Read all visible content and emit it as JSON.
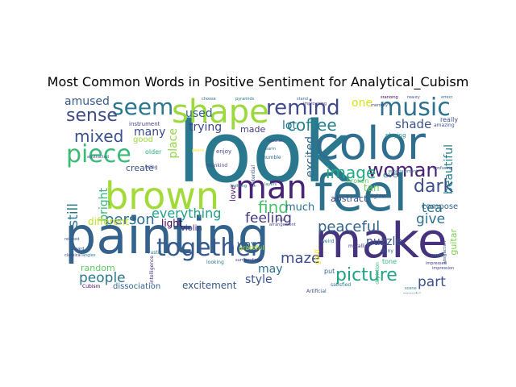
{
  "chart_data": {
    "type": "wordcloud",
    "title": "Most Common Words in Positive Sentiment for Analytical_Cubism",
    "colormap": "viridis",
    "words": [
      {
        "text": "look",
        "weight": 100,
        "color": "#2a788e",
        "orientation": "horizontal"
      },
      {
        "text": "painting",
        "weight": 78,
        "color": "#33638d",
        "orientation": "horizontal"
      },
      {
        "text": "make",
        "weight": 70,
        "color": "#46337e",
        "orientation": "horizontal"
      },
      {
        "text": "color",
        "weight": 66,
        "color": "#2e6e8e",
        "orientation": "horizontal"
      },
      {
        "text": "feel",
        "weight": 64,
        "color": "#2d708e",
        "orientation": "horizontal"
      },
      {
        "text": "brown",
        "weight": 50,
        "color": "#a2da37",
        "orientation": "horizontal"
      },
      {
        "text": "shape",
        "weight": 46,
        "color": "#9bd93c",
        "orientation": "horizontal"
      },
      {
        "text": "man",
        "weight": 40,
        "color": "#482374",
        "orientation": "horizontal"
      },
      {
        "text": "together",
        "weight": 34,
        "color": "#375a8c",
        "orientation": "horizontal"
      },
      {
        "text": "music",
        "weight": 32,
        "color": "#2c728e",
        "orientation": "horizontal"
      },
      {
        "text": "piece",
        "weight": 30,
        "color": "#3aba76",
        "orientation": "horizontal"
      },
      {
        "text": "seem",
        "weight": 30,
        "color": "#2a788e",
        "orientation": "horizontal"
      },
      {
        "text": "remind",
        "weight": 28,
        "color": "#3f4889",
        "orientation": "horizontal"
      },
      {
        "text": "woman",
        "weight": 24,
        "color": "#482173",
        "orientation": "horizontal"
      },
      {
        "text": "picture",
        "weight": 22,
        "color": "#20a386",
        "orientation": "horizontal"
      },
      {
        "text": "sense",
        "weight": 22,
        "color": "#3e4c8a",
        "orientation": "horizontal"
      },
      {
        "text": "coffee",
        "weight": 20,
        "color": "#26828e",
        "orientation": "horizontal"
      },
      {
        "text": "dark",
        "weight": 20,
        "color": "#3d4e8a",
        "orientation": "horizontal"
      },
      {
        "text": "mixed",
        "weight": 18,
        "color": "#3b518b",
        "orientation": "horizontal"
      },
      {
        "text": "image",
        "weight": 18,
        "color": "#22a884",
        "orientation": "horizontal"
      },
      {
        "text": "find",
        "weight": 18,
        "color": "#4ac16d",
        "orientation": "horizontal"
      },
      {
        "text": "person",
        "weight": 18,
        "color": "#2d708e",
        "orientation": "horizontal"
      },
      {
        "text": "peaceful",
        "weight": 18,
        "color": "#33638d",
        "orientation": "horizontal"
      },
      {
        "text": "feeling",
        "weight": 16,
        "color": "#443983",
        "orientation": "horizontal"
      },
      {
        "text": "maze",
        "weight": 16,
        "color": "#3d4e8a",
        "orientation": "horizontal"
      },
      {
        "text": "people",
        "weight": 16,
        "color": "#2a788e",
        "orientation": "horizontal"
      },
      {
        "text": "part",
        "weight": 16,
        "color": "#3b528b",
        "orientation": "horizontal"
      },
      {
        "text": "still",
        "weight": 16,
        "color": "#2a788e",
        "orientation": "vertical"
      },
      {
        "text": "everything",
        "weight": 15,
        "color": "#1fa088",
        "orientation": "horizontal"
      },
      {
        "text": "give",
        "weight": 15,
        "color": "#2c728e",
        "orientation": "horizontal"
      },
      {
        "text": "tea",
        "weight": 15,
        "color": "#2a788e",
        "orientation": "horizontal"
      },
      {
        "text": "amused",
        "weight": 14,
        "color": "#375a8c",
        "orientation": "horizontal"
      },
      {
        "text": "shade",
        "weight": 14,
        "color": "#3a548c",
        "orientation": "horizontal"
      },
      {
        "text": "lot",
        "weight": 14,
        "color": "#2a788e",
        "orientation": "horizontal"
      },
      {
        "text": "puzzle",
        "weight": 13,
        "color": "#39568c",
        "orientation": "horizontal"
      },
      {
        "text": "style",
        "weight": 13,
        "color": "#3b528b",
        "orientation": "horizontal"
      },
      {
        "text": "much",
        "weight": 13,
        "color": "#2c728e",
        "orientation": "horizontal"
      },
      {
        "text": "may",
        "weight": 13,
        "color": "#2c728e",
        "orientation": "horizontal"
      },
      {
        "text": "used",
        "weight": 13,
        "color": "#33638d",
        "orientation": "horizontal"
      },
      {
        "text": "trying",
        "weight": 12,
        "color": "#3f4788",
        "orientation": "horizontal"
      },
      {
        "text": "bright",
        "weight": 12,
        "color": "#35b779",
        "orientation": "vertical"
      },
      {
        "text": "place",
        "weight": 12,
        "color": "#90d743",
        "orientation": "vertical"
      },
      {
        "text": "excited",
        "weight": 12,
        "color": "#31688e",
        "orientation": "vertical"
      },
      {
        "text": "beautiful",
        "weight": 12,
        "color": "#26828e",
        "orientation": "vertical"
      },
      {
        "text": "many",
        "weight": 12,
        "color": "#3e4989",
        "orientation": "horizontal"
      },
      {
        "text": "one",
        "weight": 12,
        "color": "#d8e219",
        "orientation": "horizontal"
      },
      {
        "text": "excitement",
        "weight": 11,
        "color": "#38598c",
        "orientation": "horizontal"
      },
      {
        "text": "random",
        "weight": 11,
        "color": "#5ec962",
        "orientation": "horizontal"
      },
      {
        "text": "different",
        "weight": 11,
        "color": "#c2df23",
        "orientation": "horizontal"
      },
      {
        "text": "way",
        "weight": 11,
        "color": "#31688e",
        "orientation": "horizontal"
      },
      {
        "text": "guitar",
        "weight": 11,
        "color": "#7ad151",
        "orientation": "vertical"
      },
      {
        "text": "tan",
        "weight": 11,
        "color": "#6ece58",
        "orientation": "horizontal"
      },
      {
        "text": "light",
        "weight": 11,
        "color": "#440154",
        "orientation": "horizontal"
      },
      {
        "text": "dissociation",
        "weight": 10,
        "color": "#32648e",
        "orientation": "horizontal"
      },
      {
        "text": "abstract",
        "weight": 10,
        "color": "#3e4a89",
        "orientation": "horizontal"
      },
      {
        "text": "create",
        "weight": 10,
        "color": "#3b528b",
        "orientation": "horizontal"
      },
      {
        "text": "made",
        "weight": 10,
        "color": "#433e85",
        "orientation": "horizontal"
      },
      {
        "text": "good",
        "weight": 10,
        "color": "#9fda3a",
        "orientation": "horizontal"
      },
      {
        "text": "composer",
        "weight": 9,
        "color": "#33638d",
        "orientation": "horizontal"
      },
      {
        "text": "even",
        "weight": 9,
        "color": "#2c728e",
        "orientation": "horizontal"
      },
      {
        "text": "love",
        "weight": 9,
        "color": "#48186a",
        "orientation": "vertical"
      },
      {
        "text": "violin",
        "weight": 9,
        "color": "#472d7b",
        "orientation": "horizontal"
      },
      {
        "text": "broken",
        "weight": 8,
        "color": "#5ec962",
        "orientation": "horizontal"
      },
      {
        "text": "gold",
        "weight": 8,
        "color": "#fde725",
        "orientation": "vertical"
      },
      {
        "text": "playing",
        "weight": 7,
        "color": "#21918c",
        "orientation": "horizontal"
      },
      {
        "text": "grateful",
        "weight": 7,
        "color": "#b5de2b",
        "orientation": "horizontal"
      },
      {
        "text": "put",
        "weight": 7,
        "color": "#31688e",
        "orientation": "horizontal"
      },
      {
        "text": "tone",
        "weight": 7,
        "color": "#35b779",
        "orientation": "horizontal"
      },
      {
        "text": "older",
        "weight": 7,
        "color": "#29af7f",
        "orientation": "horizontal"
      },
      {
        "text": "really",
        "weight": 7,
        "color": "#3b528b",
        "orientation": "horizontal"
      },
      {
        "text": "instrument",
        "weight": 6,
        "color": "#414487",
        "orientation": "horizontal"
      },
      {
        "text": "enjoy",
        "weight": 6,
        "color": "#3e4a89",
        "orientation": "horizontal"
      },
      {
        "text": "intelligence",
        "weight": 6,
        "color": "#46327e",
        "orientation": "vertical"
      },
      {
        "text": "Artificial",
        "weight": 6,
        "color": "#3b528b",
        "orientation": "horizontal"
      },
      {
        "text": "Cubism",
        "weight": 6,
        "color": "#440154",
        "orientation": "horizontal"
      },
      {
        "text": "satisfied",
        "weight": 5,
        "color": "#2a788e",
        "orientation": "horizontal"
      },
      {
        "text": "lighter",
        "weight": 5,
        "color": "#3e4989",
        "orientation": "horizontal"
      },
      {
        "text": "metallic",
        "weight": 5,
        "color": "#453781",
        "orientation": "horizontal"
      },
      {
        "text": "weird",
        "weight": 5,
        "color": "#2a788e",
        "orientation": "horizontal"
      },
      {
        "text": "shiny",
        "weight": 5,
        "color": "#31688e",
        "orientation": "horizontal"
      },
      {
        "text": "depiction",
        "weight": 5,
        "color": "#35b779",
        "orientation": "vertical"
      },
      {
        "text": "amazing",
        "weight": 5,
        "color": "#3b528b",
        "orientation": "horizontal"
      },
      {
        "text": "looking",
        "weight": 5,
        "color": "#2a788e",
        "orientation": "horizontal"
      },
      {
        "text": "bring",
        "weight": 5,
        "color": "#3e4989",
        "orientation": "horizontal"
      },
      {
        "text": "mankind",
        "weight": 5,
        "color": "#414487",
        "orientation": "horizontal"
      },
      {
        "text": "rustic",
        "weight": 5,
        "color": "#2a788e",
        "orientation": "horizontal"
      },
      {
        "text": "humble",
        "weight": 5,
        "color": "#31688e",
        "orientation": "horizontal"
      },
      {
        "text": "potential",
        "weight": 5,
        "color": "#3e4989",
        "orientation": "vertical"
      },
      {
        "text": "abstraction",
        "weight": 4,
        "color": "#3b528b",
        "orientation": "vertical"
      },
      {
        "text": "improvising",
        "weight": 4,
        "color": "#453781",
        "orientation": "horizontal"
      },
      {
        "text": "entertainment",
        "weight": 4,
        "color": "#2a788e",
        "orientation": "horizontal"
      },
      {
        "text": "confusing",
        "weight": 4,
        "color": "#3e4989",
        "orientation": "horizontal"
      },
      {
        "text": "pyramids",
        "weight": 4,
        "color": "#2a788e",
        "orientation": "horizontal"
      },
      {
        "text": "stand",
        "weight": 4,
        "color": "#31688e",
        "orientation": "horizontal"
      },
      {
        "text": "standing",
        "weight": 4,
        "color": "#440154",
        "orientation": "horizontal"
      },
      {
        "text": "reality",
        "weight": 4,
        "color": "#3b528b",
        "orientation": "horizontal"
      },
      {
        "text": "effect",
        "weight": 4,
        "color": "#2a788e",
        "orientation": "horizontal"
      },
      {
        "text": "alike",
        "weight": 4,
        "color": "#414487",
        "orientation": "horizontal"
      },
      {
        "text": "memory",
        "weight": 4,
        "color": "#3e4989",
        "orientation": "horizontal"
      },
      {
        "text": "choose",
        "weight": 4,
        "color": "#31688e",
        "orientation": "horizontal"
      },
      {
        "text": "scene",
        "weight": 4,
        "color": "#2a788e",
        "orientation": "horizontal"
      },
      {
        "text": "board",
        "weight": 4,
        "color": "#3b528b",
        "orientation": "horizontal"
      },
      {
        "text": "classical",
        "weight": 4,
        "color": "#414487",
        "orientation": "horizontal"
      },
      {
        "text": "surroundings",
        "weight": 4,
        "color": "#453781",
        "orientation": "horizontal"
      },
      {
        "text": "layers",
        "weight": 4,
        "color": "#2a788e",
        "orientation": "horizontal"
      },
      {
        "text": "building",
        "weight": 4,
        "color": "#31688e",
        "orientation": "horizontal"
      },
      {
        "text": "arrangement",
        "weight": 4,
        "color": "#3e4989",
        "orientation": "horizontal"
      },
      {
        "text": "peace",
        "weight": 4,
        "color": "#fde725",
        "orientation": "horizontal"
      },
      {
        "text": "abstracted",
        "weight": 4,
        "color": "#3b528b",
        "orientation": "horizontal"
      },
      {
        "text": "angles",
        "weight": 4,
        "color": "#2a788e",
        "orientation": "horizontal"
      },
      {
        "text": "natural",
        "weight": 4,
        "color": "#414487",
        "orientation": "horizontal"
      },
      {
        "text": "warm",
        "weight": 4,
        "color": "#31688e",
        "orientation": "horizontal"
      },
      {
        "text": "impression",
        "weight": 4,
        "color": "#3e4989",
        "orientation": "horizontal"
      },
      {
        "text": "modern",
        "weight": 4,
        "color": "#2a788e",
        "orientation": "horizontal"
      },
      {
        "text": "relaxed",
        "weight": 4,
        "color": "#3b528b",
        "orientation": "horizontal"
      },
      {
        "text": "impressed",
        "weight": 4,
        "color": "#453781",
        "orientation": "horizontal"
      },
      {
        "text": "powerful",
        "weight": 4,
        "color": "#2a788e",
        "orientation": "horizontal"
      }
    ]
  }
}
